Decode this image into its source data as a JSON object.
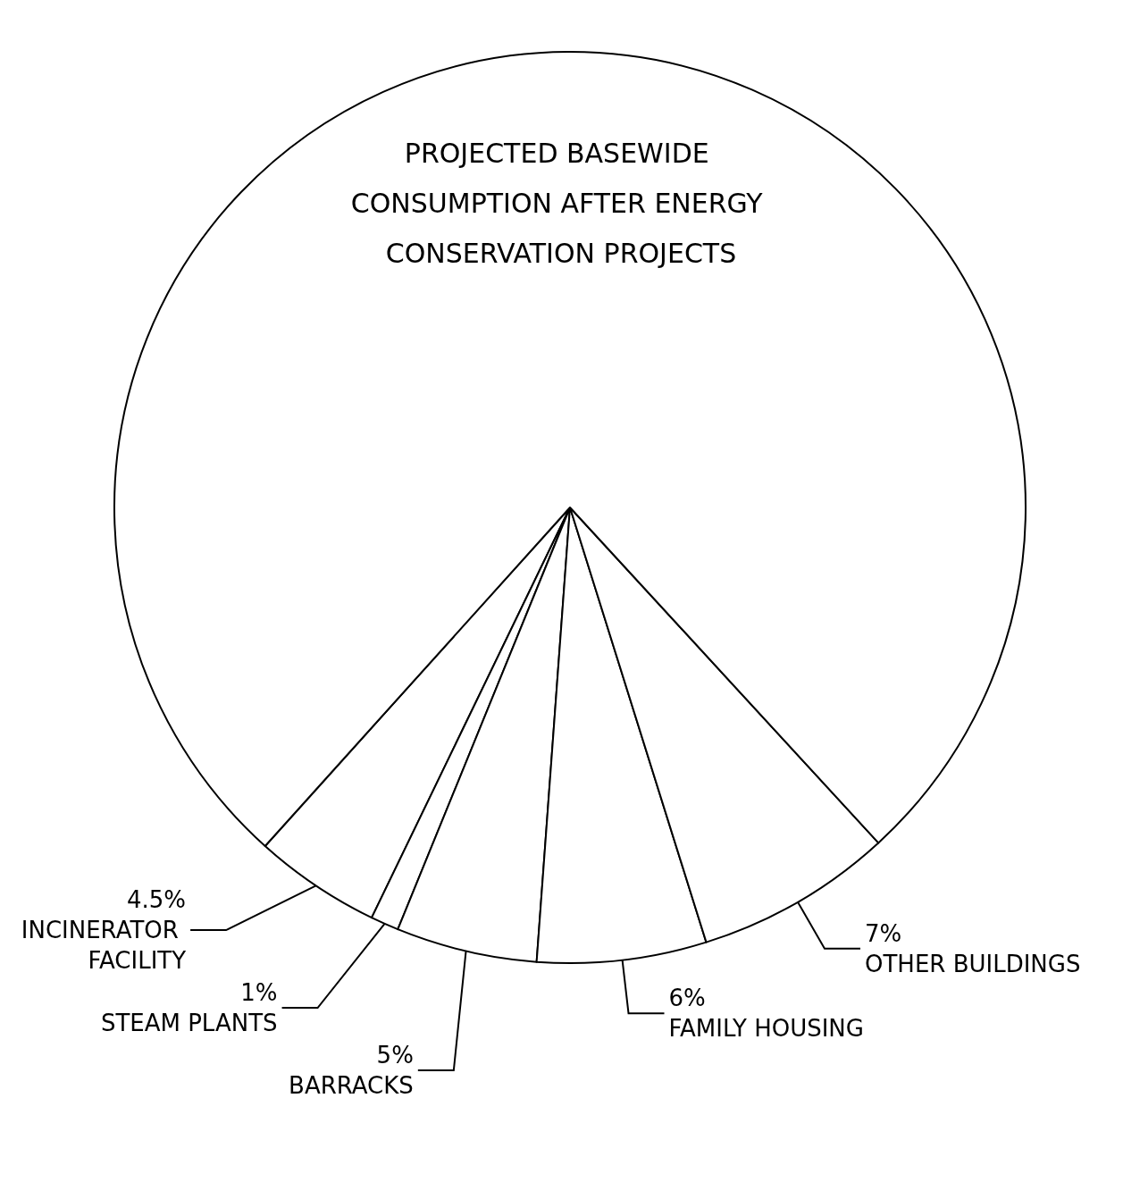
{
  "chart_data": {
    "type": "pie",
    "title": "PROJECTED BASEWIDE CONSUMPTION AFTER ENERGY CONSERVATION PROJECTS",
    "categories": [
      "INCINERATOR FACILITY",
      "STEAM PLANTS",
      "BARRACKS",
      "FAMILY HOUSING",
      "OTHER BUILDINGS",
      null
    ],
    "values": [
      4.5,
      1,
      5,
      6,
      7,
      76.5
    ],
    "value_labels": [
      "4.5%",
      "1%",
      "5%",
      "6%",
      "7%",
      null
    ],
    "colors": [
      "#ffffff",
      "#ffffff",
      "#ffffff",
      "#ffffff",
      "#ffffff",
      "#ffffff"
    ],
    "legend": false
  }
}
